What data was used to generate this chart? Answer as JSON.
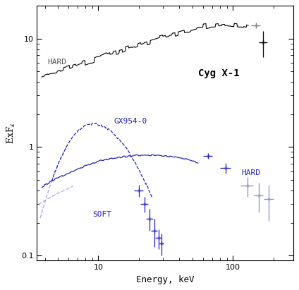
{
  "title": "",
  "xlabel": "Energy, keV",
  "ylabel": "ExFε",
  "xlim": [
    3.5,
    280
  ],
  "ylim": [
    0.09,
    20
  ],
  "background_color": "#ffffff",
  "cyg_x1_label": "Cyg X-1",
  "cyg_hard_label": "HARD",
  "gx354_label": "GX954-0",
  "gx_hard_label": "HARD",
  "gx_soft_label": "SOFT",
  "blue_dark": "#0000cc",
  "blue_light": "#8888dd"
}
